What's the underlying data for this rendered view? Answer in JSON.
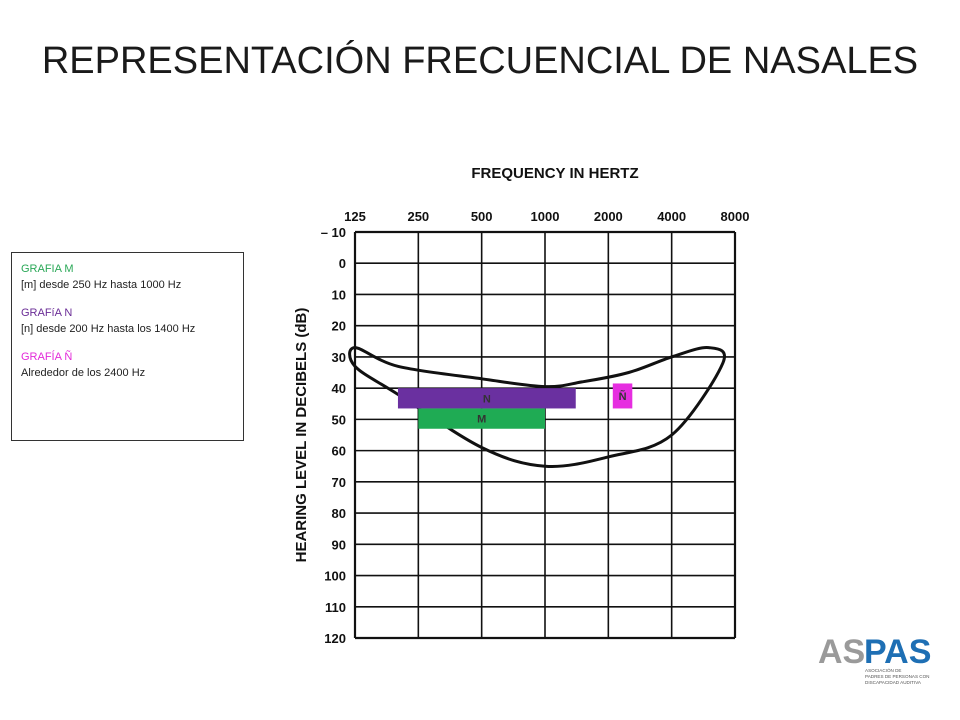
{
  "slide": {
    "title": "REPRESENTACIÓN FRECUENCIAL DE NASALES"
  },
  "legend": {
    "m_title": "GRAFIA M",
    "m_text": "[m] desde 250 Hz hasta 1000  Hz",
    "n_title": "GRAFíA N",
    "n_text": "[n] desde 200 Hz hasta los  1400  Hz",
    "nn_title": "GRAFÍA Ñ",
    "nn_text": "Alrededor de los 2400  Hz"
  },
  "logo": {
    "text_as": "AS",
    "text_pas": "PAS",
    "caption_lines": [
      "ASOCIACIÓN DE",
      "PADRES DE PERSONAS CON",
      "DISCAPACIDAD AUDITIVA"
    ]
  },
  "colors": {
    "m_bar": "#1fab54",
    "n_bar": "#6a30a0",
    "nn_bar": "#e62ee0",
    "logo_grey": "#9a9a9a",
    "logo_blue": "#1e6fb4"
  },
  "chart_data": {
    "type": "audiogram",
    "title": "FREQUENCY IN HERTZ",
    "ylabel": "HEARING LEVEL IN DECIBELS (dB)",
    "x_ticks": [
      125,
      250,
      500,
      1000,
      2000,
      4000,
      8000
    ],
    "x_scale": "log2",
    "y_ticks": [
      -10,
      0,
      10,
      20,
      30,
      40,
      50,
      60,
      70,
      80,
      90,
      100,
      110,
      120
    ],
    "ylim": [
      -10,
      120
    ],
    "y_inverted": true,
    "grid": true,
    "bars": [
      {
        "label": "N",
        "x_from": 200,
        "x_to": 1400,
        "y_from": 40,
        "y_to": 46.5
      },
      {
        "label": "M",
        "x_from": 250,
        "x_to": 1000,
        "y_from": 46.5,
        "y_to": 53
      },
      {
        "label": "Ñ",
        "x_from": 2100,
        "x_to": 2600,
        "y_from": 38.5,
        "y_to": 46.5
      }
    ],
    "speech_banana_outline": {
      "upper_edge": [
        [
          125,
          27
        ],
        [
          200,
          33
        ],
        [
          500,
          37
        ],
        [
          1000,
          39.5
        ],
        [
          1500,
          38
        ],
        [
          2500,
          35
        ],
        [
          4000,
          30
        ],
        [
          6000,
          27
        ]
      ],
      "lower_edge": [
        [
          125,
          33
        ],
        [
          200,
          42
        ],
        [
          500,
          59
        ],
        [
          1000,
          65
        ],
        [
          2000,
          62
        ],
        [
          4000,
          55
        ],
        [
          7000,
          32
        ]
      ]
    }
  }
}
